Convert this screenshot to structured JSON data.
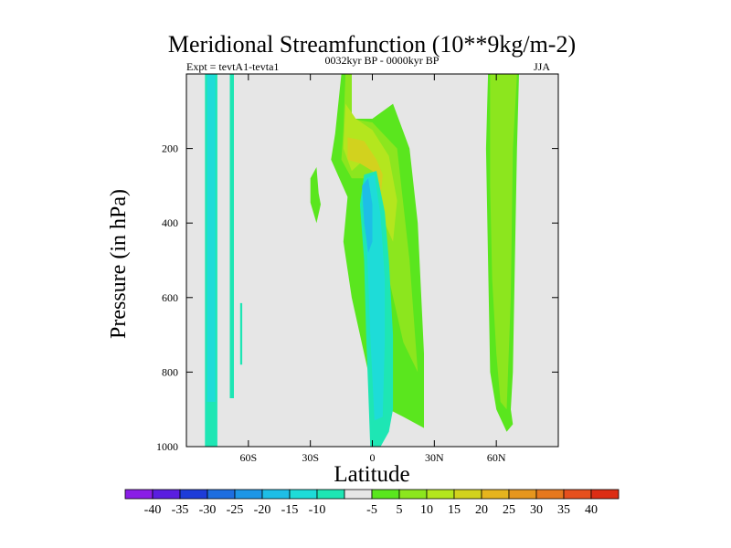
{
  "chart_data": {
    "type": "heatmap",
    "title": "Meridional Streamfunction (10**9kg/m-2)",
    "subtitle_left": "Expt = tevtA1-tevta1",
    "subtitle_center": "0032kyr BP - 0000kyr BP",
    "subtitle_right": "JJA",
    "xlabel": "Latitude",
    "ylabel": "Pressure (in hPa)",
    "xlim": [
      -90,
      90
    ],
    "ylim": [
      0,
      1000
    ],
    "y_inverted": true,
    "xticks": [
      {
        "value": -60,
        "label": "60S"
      },
      {
        "value": -30,
        "label": "30S"
      },
      {
        "value": 0,
        "label": "0"
      },
      {
        "value": 30,
        "label": "30N"
      },
      {
        "value": 60,
        "label": "60N"
      }
    ],
    "yticks": [
      {
        "value": 200,
        "label": "200"
      },
      {
        "value": 400,
        "label": "400"
      },
      {
        "value": 600,
        "label": "600"
      },
      {
        "value": 800,
        "label": "800"
      },
      {
        "value": 1000,
        "label": "1000"
      }
    ],
    "colorbar": {
      "colors": [
        "#8a1ee6",
        "#5a1ee0",
        "#1e3cd8",
        "#1e6ee0",
        "#1e96e6",
        "#1ebee6",
        "#1edcd8",
        "#1ee6b4",
        "#e6e6e6",
        "#5ae61e",
        "#8ce61e",
        "#b4e61e",
        "#d2d21e",
        "#e6b41e",
        "#e6961e",
        "#e6781e",
        "#e6501e",
        "#dc2d14"
      ],
      "labels": [
        "-40",
        "-35",
        "-30",
        "-25",
        "-20",
        "-15",
        "-10",
        "-5",
        "5",
        "10",
        "15",
        "20",
        "25",
        "30",
        "35",
        "40"
      ]
    },
    "regions": [
      {
        "name": "south-polar-cell",
        "level": "-5",
        "color": "#1ee6b4",
        "points": [
          [
            -81,
            0
          ],
          [
            -75,
            0
          ],
          [
            -75,
            1000
          ],
          [
            -81,
            1000
          ]
        ]
      },
      {
        "name": "south-polar-core",
        "level": "-10",
        "color": "#1edcd8",
        "points": [
          [
            -80,
            0
          ],
          [
            -76,
            0
          ],
          [
            -76,
            880
          ],
          [
            -80,
            880
          ]
        ]
      },
      {
        "name": "south-strip",
        "level": "-5",
        "color": "#1ee6b4",
        "points": [
          [
            -69,
            0
          ],
          [
            -67,
            0
          ],
          [
            -67,
            870
          ],
          [
            -69,
            870
          ]
        ]
      },
      {
        "name": "south-sliver",
        "level": "-5",
        "color": "#1ee6b4",
        "points": [
          [
            -64,
            615
          ],
          [
            -63,
            615
          ],
          [
            -63,
            780
          ],
          [
            -64,
            780
          ]
        ]
      },
      {
        "name": "tropical-north-cell",
        "level": "5",
        "color": "#5ae61e",
        "points": [
          [
            -15,
            0
          ],
          [
            -10,
            0
          ],
          [
            -10,
            120
          ],
          [
            0,
            120
          ],
          [
            10,
            80
          ],
          [
            18,
            200
          ],
          [
            22,
            400
          ],
          [
            25,
            750
          ],
          [
            25,
            950
          ],
          [
            15,
            920
          ],
          [
            8,
            900
          ],
          [
            -2,
            800
          ],
          [
            -10,
            600
          ],
          [
            -14,
            450
          ],
          [
            -12,
            330
          ],
          [
            -20,
            230
          ],
          [
            -18,
            160
          ]
        ]
      },
      {
        "name": "tropical-west-patch",
        "level": "5",
        "color": "#5ae61e",
        "points": [
          [
            -30,
            280
          ],
          [
            -27,
            250
          ],
          [
            -26,
            320
          ],
          [
            -25,
            350
          ],
          [
            -27,
            400
          ],
          [
            -30,
            345
          ]
        ]
      },
      {
        "name": "tropical-north-core",
        "level": "10",
        "color": "#8ce61e",
        "points": [
          [
            -13,
            0
          ],
          [
            -10,
            0
          ],
          [
            -10,
            120
          ],
          [
            0,
            130
          ],
          [
            12,
            200
          ],
          [
            18,
            500
          ],
          [
            22,
            800
          ],
          [
            15,
            720
          ],
          [
            8,
            550
          ],
          [
            2,
            400
          ],
          [
            -3,
            280
          ],
          [
            -10,
            280
          ],
          [
            -15,
            230
          ],
          [
            -14,
            150
          ]
        ]
      },
      {
        "name": "tropical-north-peak",
        "level": "15",
        "color": "#b4e61e",
        "points": [
          [
            -13,
            80
          ],
          [
            -8,
            120
          ],
          [
            0,
            150
          ],
          [
            8,
            220
          ],
          [
            12,
            340
          ],
          [
            10,
            450
          ],
          [
            6,
            400
          ],
          [
            3,
            290
          ],
          [
            -2,
            220
          ],
          [
            -10,
            260
          ],
          [
            -14,
            200
          ]
        ]
      },
      {
        "name": "tropical-max",
        "level": "20",
        "color": "#d2d21e",
        "points": [
          [
            -12,
            170
          ],
          [
            -4,
            180
          ],
          [
            2,
            230
          ],
          [
            5,
            270
          ],
          [
            4,
            330
          ],
          [
            0,
            260
          ],
          [
            -6,
            240
          ],
          [
            -12,
            230
          ]
        ]
      },
      {
        "name": "tropical-south-cell",
        "level": "-5",
        "color": "#1ee6b4",
        "points": [
          [
            -4,
            270
          ],
          [
            2,
            260
          ],
          [
            6,
            370
          ],
          [
            8,
            500
          ],
          [
            10,
            700
          ],
          [
            10,
            900
          ],
          [
            8,
            960
          ],
          [
            4,
            1000
          ],
          [
            -1,
            1000
          ],
          [
            -2,
            850
          ],
          [
            -3,
            700
          ],
          [
            -4,
            500
          ],
          [
            -6,
            350
          ]
        ]
      },
      {
        "name": "tropical-south-core",
        "level": "-10",
        "color": "#1edcd8",
        "points": [
          [
            -3,
            280
          ],
          [
            1,
            270
          ],
          [
            4,
            380
          ],
          [
            6,
            550
          ],
          [
            6,
            720
          ],
          [
            5,
            920
          ],
          [
            1,
            930
          ],
          [
            -1,
            700
          ],
          [
            -2,
            550
          ],
          [
            -3,
            420
          ],
          [
            -5,
            330
          ]
        ]
      },
      {
        "name": "tropical-south-peak",
        "level": "-15",
        "color": "#1ebee6",
        "points": [
          [
            -5,
            300
          ],
          [
            -2,
            280
          ],
          [
            0,
            350
          ],
          [
            0,
            450
          ],
          [
            -2,
            480
          ],
          [
            -4,
            400
          ]
        ]
      },
      {
        "name": "north-cell",
        "level": "5",
        "color": "#5ae61e",
        "points": [
          [
            56,
            0
          ],
          [
            71,
            0
          ],
          [
            70,
            200
          ],
          [
            69,
            500
          ],
          [
            68,
            800
          ],
          [
            67,
            900
          ],
          [
            68,
            940
          ],
          [
            65,
            960
          ],
          [
            60,
            900
          ],
          [
            57,
            800
          ],
          [
            56,
            500
          ],
          [
            55,
            200
          ]
        ]
      },
      {
        "name": "north-core",
        "level": "10",
        "color": "#8ce61e",
        "points": [
          [
            57,
            0
          ],
          [
            70,
            0
          ],
          [
            68,
            200
          ],
          [
            67,
            600
          ],
          [
            65,
            900
          ],
          [
            62,
            880
          ],
          [
            60,
            750
          ],
          [
            58,
            550
          ],
          [
            57,
            300
          ]
        ]
      }
    ]
  }
}
